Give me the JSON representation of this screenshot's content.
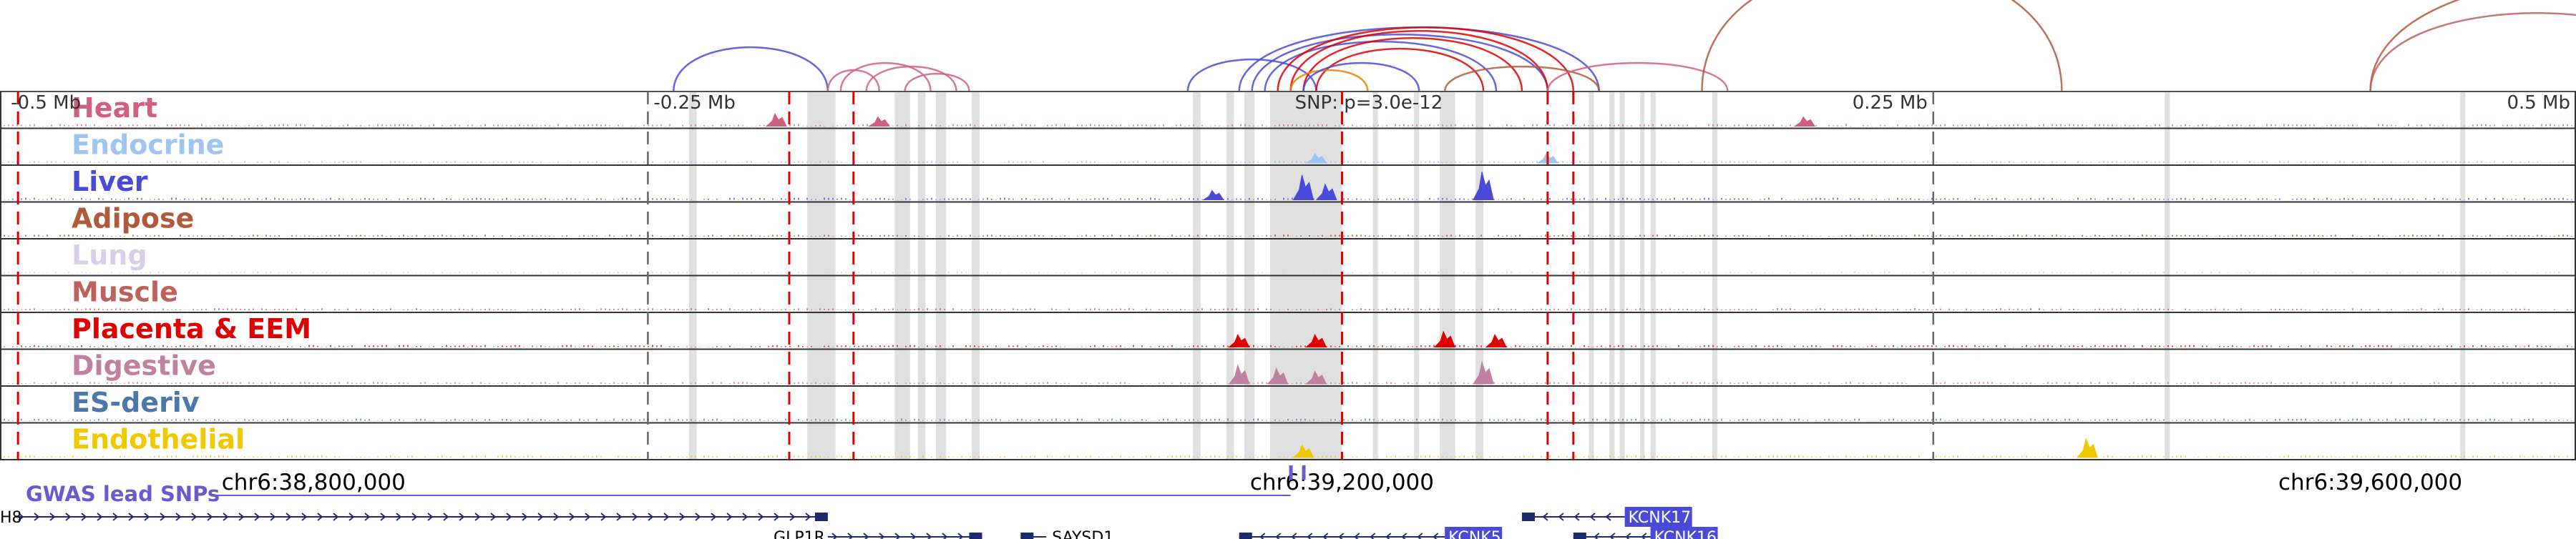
{
  "chart_data": {
    "type": "genome-browser",
    "title": "",
    "axis_ticks": [
      {
        "pos": -0.5,
        "label": "-0.5 Mb"
      },
      {
        "pos": -0.25,
        "label": "-0.25 Mb"
      },
      {
        "pos": 0.25,
        "label": "0.25 Mb"
      },
      {
        "pos": 0.5,
        "label": "0.5 Mb"
      }
    ],
    "snp_annotation": "SNP: p=3.0e-12",
    "snp_position_mb": 0.0,
    "x_range_mb": [
      -0.502,
      0.5
    ],
    "genomic_coordinates": [
      {
        "pos": -0.38,
        "label": "chr6:38,800,000"
      },
      {
        "pos": 0.02,
        "label": "chr6:39,200,000"
      },
      {
        "pos": 0.42,
        "label": "chr6:39,600,000"
      }
    ],
    "gwas_label": "GWAS lead SNPs",
    "gwas_color": "#6a5acd",
    "tracks": [
      {
        "name": "Heart",
        "color": "#d06080"
      },
      {
        "name": "Endocrine",
        "color": "#9ec4f0"
      },
      {
        "name": "Liver",
        "color": "#4a4ad8"
      },
      {
        "name": "Adipose",
        "color": "#b05a3c"
      },
      {
        "name": "Lung",
        "color": "#d8d0e8"
      },
      {
        "name": "Muscle",
        "color": "#c0605a"
      },
      {
        "name": "Placenta & EEM",
        "color": "#e00000"
      },
      {
        "name": "Digestive",
        "color": "#c080a0"
      },
      {
        "name": "ES-deriv",
        "color": "#4a78a8"
      },
      {
        "name": "Endothelial",
        "color": "#f0c800"
      }
    ],
    "red_dashed_lines_mb": [
      -0.495,
      -0.195,
      -0.17,
      0.02,
      0.1,
      0.11
    ],
    "gray_dashed_lines_mb": [
      -0.25,
      0.25
    ],
    "gray_bands_mb": [
      [
        -0.234,
        -0.231
      ],
      [
        -0.188,
        -0.177
      ],
      [
        -0.154,
        -0.148
      ],
      [
        -0.145,
        -0.142
      ],
      [
        -0.138,
        -0.134
      ],
      [
        -0.124,
        -0.121
      ],
      [
        -0.038,
        -0.035
      ],
      [
        -0.025,
        -0.022
      ],
      [
        -0.018,
        -0.014
      ],
      [
        -0.008,
        0.02
      ],
      [
        0.032,
        0.034
      ],
      [
        0.048,
        0.05
      ],
      [
        0.058,
        0.064
      ],
      [
        0.072,
        0.075
      ],
      [
        0.116,
        0.118
      ],
      [
        0.124,
        0.126
      ],
      [
        0.128,
        0.13
      ],
      [
        0.136,
        0.137
      ],
      [
        0.14,
        0.142
      ],
      [
        0.164,
        0.166
      ],
      [
        0.34,
        0.342
      ],
      [
        0.455,
        0.457
      ]
    ],
    "signal_peaks": [
      {
        "track": "Heart",
        "pos": -0.2,
        "height": 0.4
      },
      {
        "track": "Heart",
        "pos": -0.16,
        "height": 0.3
      },
      {
        "track": "Heart",
        "pos": 0.2,
        "height": 0.3
      },
      {
        "track": "Endocrine",
        "pos": 0.01,
        "height": 0.3
      },
      {
        "track": "Endocrine",
        "pos": 0.1,
        "height": 0.3
      },
      {
        "track": "Liver",
        "pos": 0.005,
        "height": 0.8
      },
      {
        "track": "Liver",
        "pos": 0.014,
        "height": 0.5
      },
      {
        "track": "Liver",
        "pos": 0.075,
        "height": 0.9
      },
      {
        "track": "Liver",
        "pos": -0.03,
        "height": 0.3
      },
      {
        "track": "Placenta & EEM",
        "pos": -0.02,
        "height": 0.4
      },
      {
        "track": "Placenta & EEM",
        "pos": 0.01,
        "height": 0.4
      },
      {
        "track": "Placenta & EEM",
        "pos": 0.06,
        "height": 0.5
      },
      {
        "track": "Placenta & EEM",
        "pos": 0.08,
        "height": 0.4
      },
      {
        "track": "Digestive",
        "pos": -0.02,
        "height": 0.6
      },
      {
        "track": "Digestive",
        "pos": -0.005,
        "height": 0.5
      },
      {
        "track": "Digestive",
        "pos": 0.01,
        "height": 0.4
      },
      {
        "track": "Digestive",
        "pos": 0.075,
        "height": 0.7
      },
      {
        "track": "Endothelial",
        "pos": 0.31,
        "height": 0.6
      },
      {
        "track": "Endothelial",
        "pos": 0.005,
        "height": 0.4
      }
    ],
    "loops": [
      {
        "start": -0.24,
        "end": -0.18,
        "color": "#4a4ad8",
        "height": 62
      },
      {
        "start": -0.18,
        "end": -0.16,
        "color": "#d06080",
        "height": 30
      },
      {
        "start": -0.175,
        "end": -0.14,
        "color": "#d06080",
        "height": 40
      },
      {
        "start": -0.165,
        "end": -0.13,
        "color": "#d06080",
        "height": 35
      },
      {
        "start": -0.15,
        "end": -0.125,
        "color": "#d06080",
        "height": 25
      },
      {
        "start": -0.04,
        "end": 0.01,
        "color": "#4a4ad8",
        "height": 45
      },
      {
        "start": -0.02,
        "end": 0.12,
        "color": "#4a4ad8",
        "height": 90
      },
      {
        "start": -0.015,
        "end": 0.1,
        "color": "#4a4ad8",
        "height": 80
      },
      {
        "start": -0.01,
        "end": 0.08,
        "color": "#4a4ad8",
        "height": 70
      },
      {
        "start": -0.005,
        "end": 0.11,
        "color": "#e00000",
        "height": 90
      },
      {
        "start": 0.0,
        "end": 0.1,
        "color": "#e00000",
        "height": 85
      },
      {
        "start": 0.005,
        "end": 0.09,
        "color": "#e00000",
        "height": 75
      },
      {
        "start": 0.01,
        "end": 0.075,
        "color": "#e00000",
        "height": 60
      },
      {
        "start": 0.0,
        "end": 0.03,
        "color": "#f08000",
        "height": 30
      },
      {
        "start": 0.005,
        "end": 0.05,
        "color": "#4a4ad8",
        "height": 40
      },
      {
        "start": 0.06,
        "end": 0.12,
        "color": "#b05a3c",
        "height": 35
      },
      {
        "start": 0.1,
        "end": 0.17,
        "color": "#d06080",
        "height": 40
      },
      {
        "start": 0.16,
        "end": 0.3,
        "color": "#b05a3c",
        "height": 180
      },
      {
        "start": 0.42,
        "end": 0.6,
        "color": "#b05a3c",
        "height": 160
      },
      {
        "start": 0.42,
        "end": 0.55,
        "color": "#c0605a",
        "height": 110
      }
    ],
    "genes": [
      {
        "name": "H8",
        "start": -0.5,
        "end": -0.18,
        "strand": "+",
        "row": 0,
        "boxed": false
      },
      {
        "name": "GLP1R",
        "start": -0.18,
        "end": -0.12,
        "strand": "+",
        "row": 1,
        "boxed": false
      },
      {
        "name": "SAYSD1",
        "start": -0.105,
        "end": -0.095,
        "strand": "-",
        "row": 1,
        "boxed": false
      },
      {
        "name": "KCNK5",
        "start": -0.02,
        "end": 0.06,
        "strand": "-",
        "row": 1,
        "boxed": true
      },
      {
        "name": "KCNK17",
        "start": 0.09,
        "end": 0.13,
        "strand": "-",
        "row": 0,
        "boxed": true
      },
      {
        "name": "KCNK16",
        "start": 0.11,
        "end": 0.14,
        "strand": "-",
        "row": 1,
        "boxed": true
      }
    ],
    "gwas_snps_mb": [
      0.0,
      0.005
    ]
  }
}
